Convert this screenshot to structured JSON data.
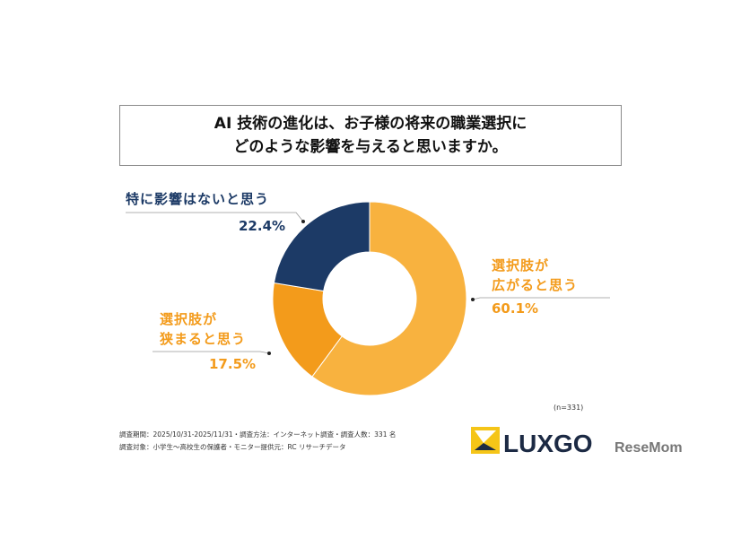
{
  "title_lines": [
    "AI 技術の進化は、お子様の将来の職業選択に",
    "どのような影響を与えると思いますか。"
  ],
  "sample_size": "(n=331)",
  "footnotes": [
    "調査期間：2025/10/31-2025/11/31・調査方法：インターネット調査・調査人数：331 名",
    "調査対象：小学生～高校生の保護者・モニター提供元：RC リサーチデータ"
  ],
  "logo": {
    "brand": "LUXGO",
    "watermark": "ReseMom"
  },
  "chart_data": {
    "type": "pie",
    "donut": true,
    "start": "top, clockwise",
    "slices": [
      {
        "label_lines": [
          "選択肢が",
          "広がると思う"
        ],
        "value": 60.1,
        "value_label": "60.1%",
        "color": "#F8B23F"
      },
      {
        "label_lines": [
          "選択肢が",
          "狭まると思う"
        ],
        "value": 17.5,
        "value_label": "17.5%",
        "color": "#F39B1B"
      },
      {
        "label_lines": [
          "特に影響はないと思う"
        ],
        "value": 22.4,
        "value_label": "22.4%",
        "color": "#1C3A66"
      }
    ]
  }
}
